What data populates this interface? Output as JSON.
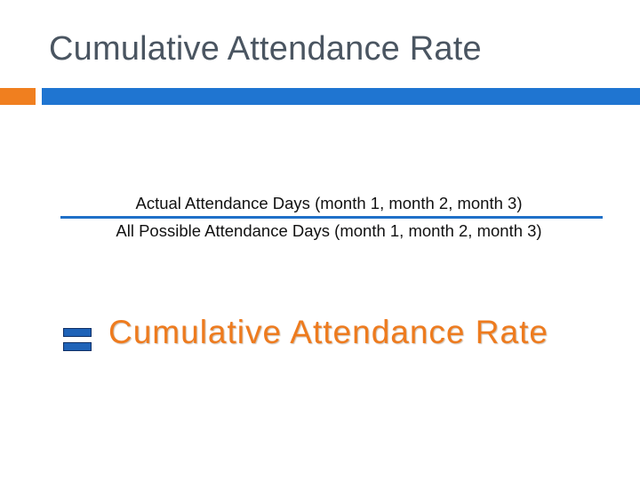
{
  "slide": {
    "title": "Cumulative Attendance Rate",
    "accent_colors": {
      "orange": "#f07f1f",
      "blue": "#1f75d1"
    }
  },
  "formula": {
    "numerator": "Actual Attendance Days (month 1, month 2, month 3)",
    "denominator": "All Possible Attendance Days (month 1, month 2, month 3)",
    "operator_icon": "equals-sign-icon",
    "result": "Cumulative Attendance Rate",
    "result_color": "#ee7b1e"
  }
}
